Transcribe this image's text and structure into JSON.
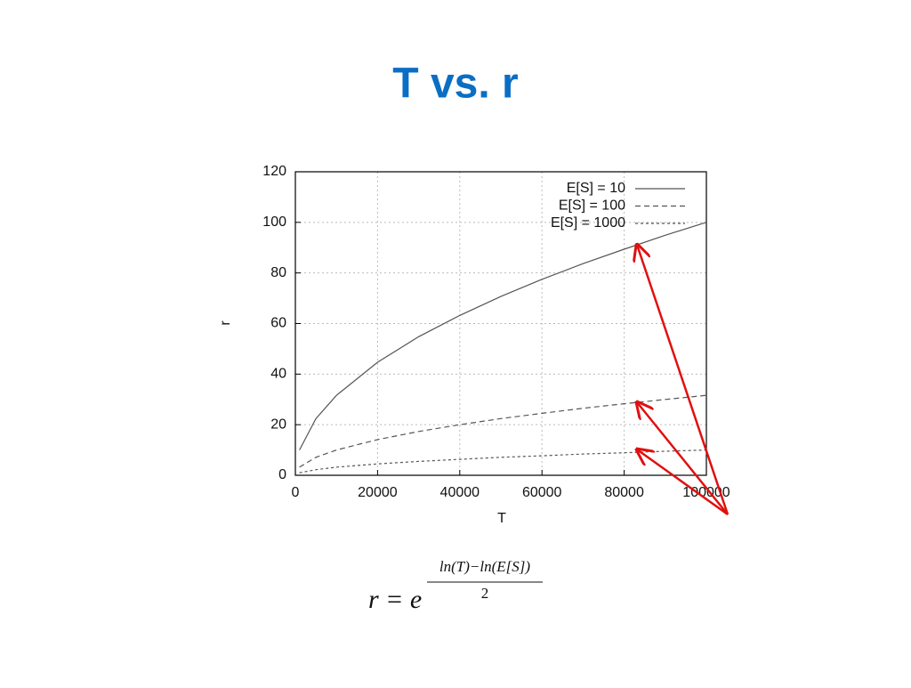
{
  "chart_data": {
    "type": "line",
    "title": "T vs. r",
    "x_label": "T",
    "y_label": "r",
    "x": [
      1000,
      5000,
      10000,
      20000,
      30000,
      40000,
      50000,
      60000,
      70000,
      80000,
      90000,
      100000
    ],
    "series": [
      {
        "name": "E[S] = 10",
        "color": "#555555",
        "dash": "solid",
        "values": [
          10,
          22.4,
          31.6,
          44.7,
          54.8,
          63.2,
          70.7,
          77.5,
          83.7,
          89.4,
          94.9,
          100
        ]
      },
      {
        "name": "E[S] = 100",
        "color": "#555555",
        "dash": "dashed",
        "values": [
          3.2,
          7.1,
          10,
          14.1,
          17.3,
          20,
          22.4,
          24.5,
          26.5,
          28.3,
          30,
          31.6
        ]
      },
      {
        "name": "E[S] = 1000",
        "color": "#555555",
        "dash": "dotted",
        "values": [
          1,
          2.2,
          3.2,
          4.5,
          5.5,
          6.3,
          7.1,
          7.7,
          8.4,
          8.9,
          9.5,
          10
        ]
      }
    ],
    "xlim": [
      0,
      100000
    ],
    "xticks": [
      0,
      20000,
      40000,
      60000,
      80000,
      100000
    ],
    "ylim": [
      0,
      120
    ],
    "yticks": [
      0,
      20,
      40,
      60,
      80,
      100,
      120
    ],
    "grid": true,
    "legend": "top-right",
    "formula": {
      "lhs": "r = e",
      "numerator": "ln(T)−ln(E[S])",
      "denominator": "2"
    }
  }
}
